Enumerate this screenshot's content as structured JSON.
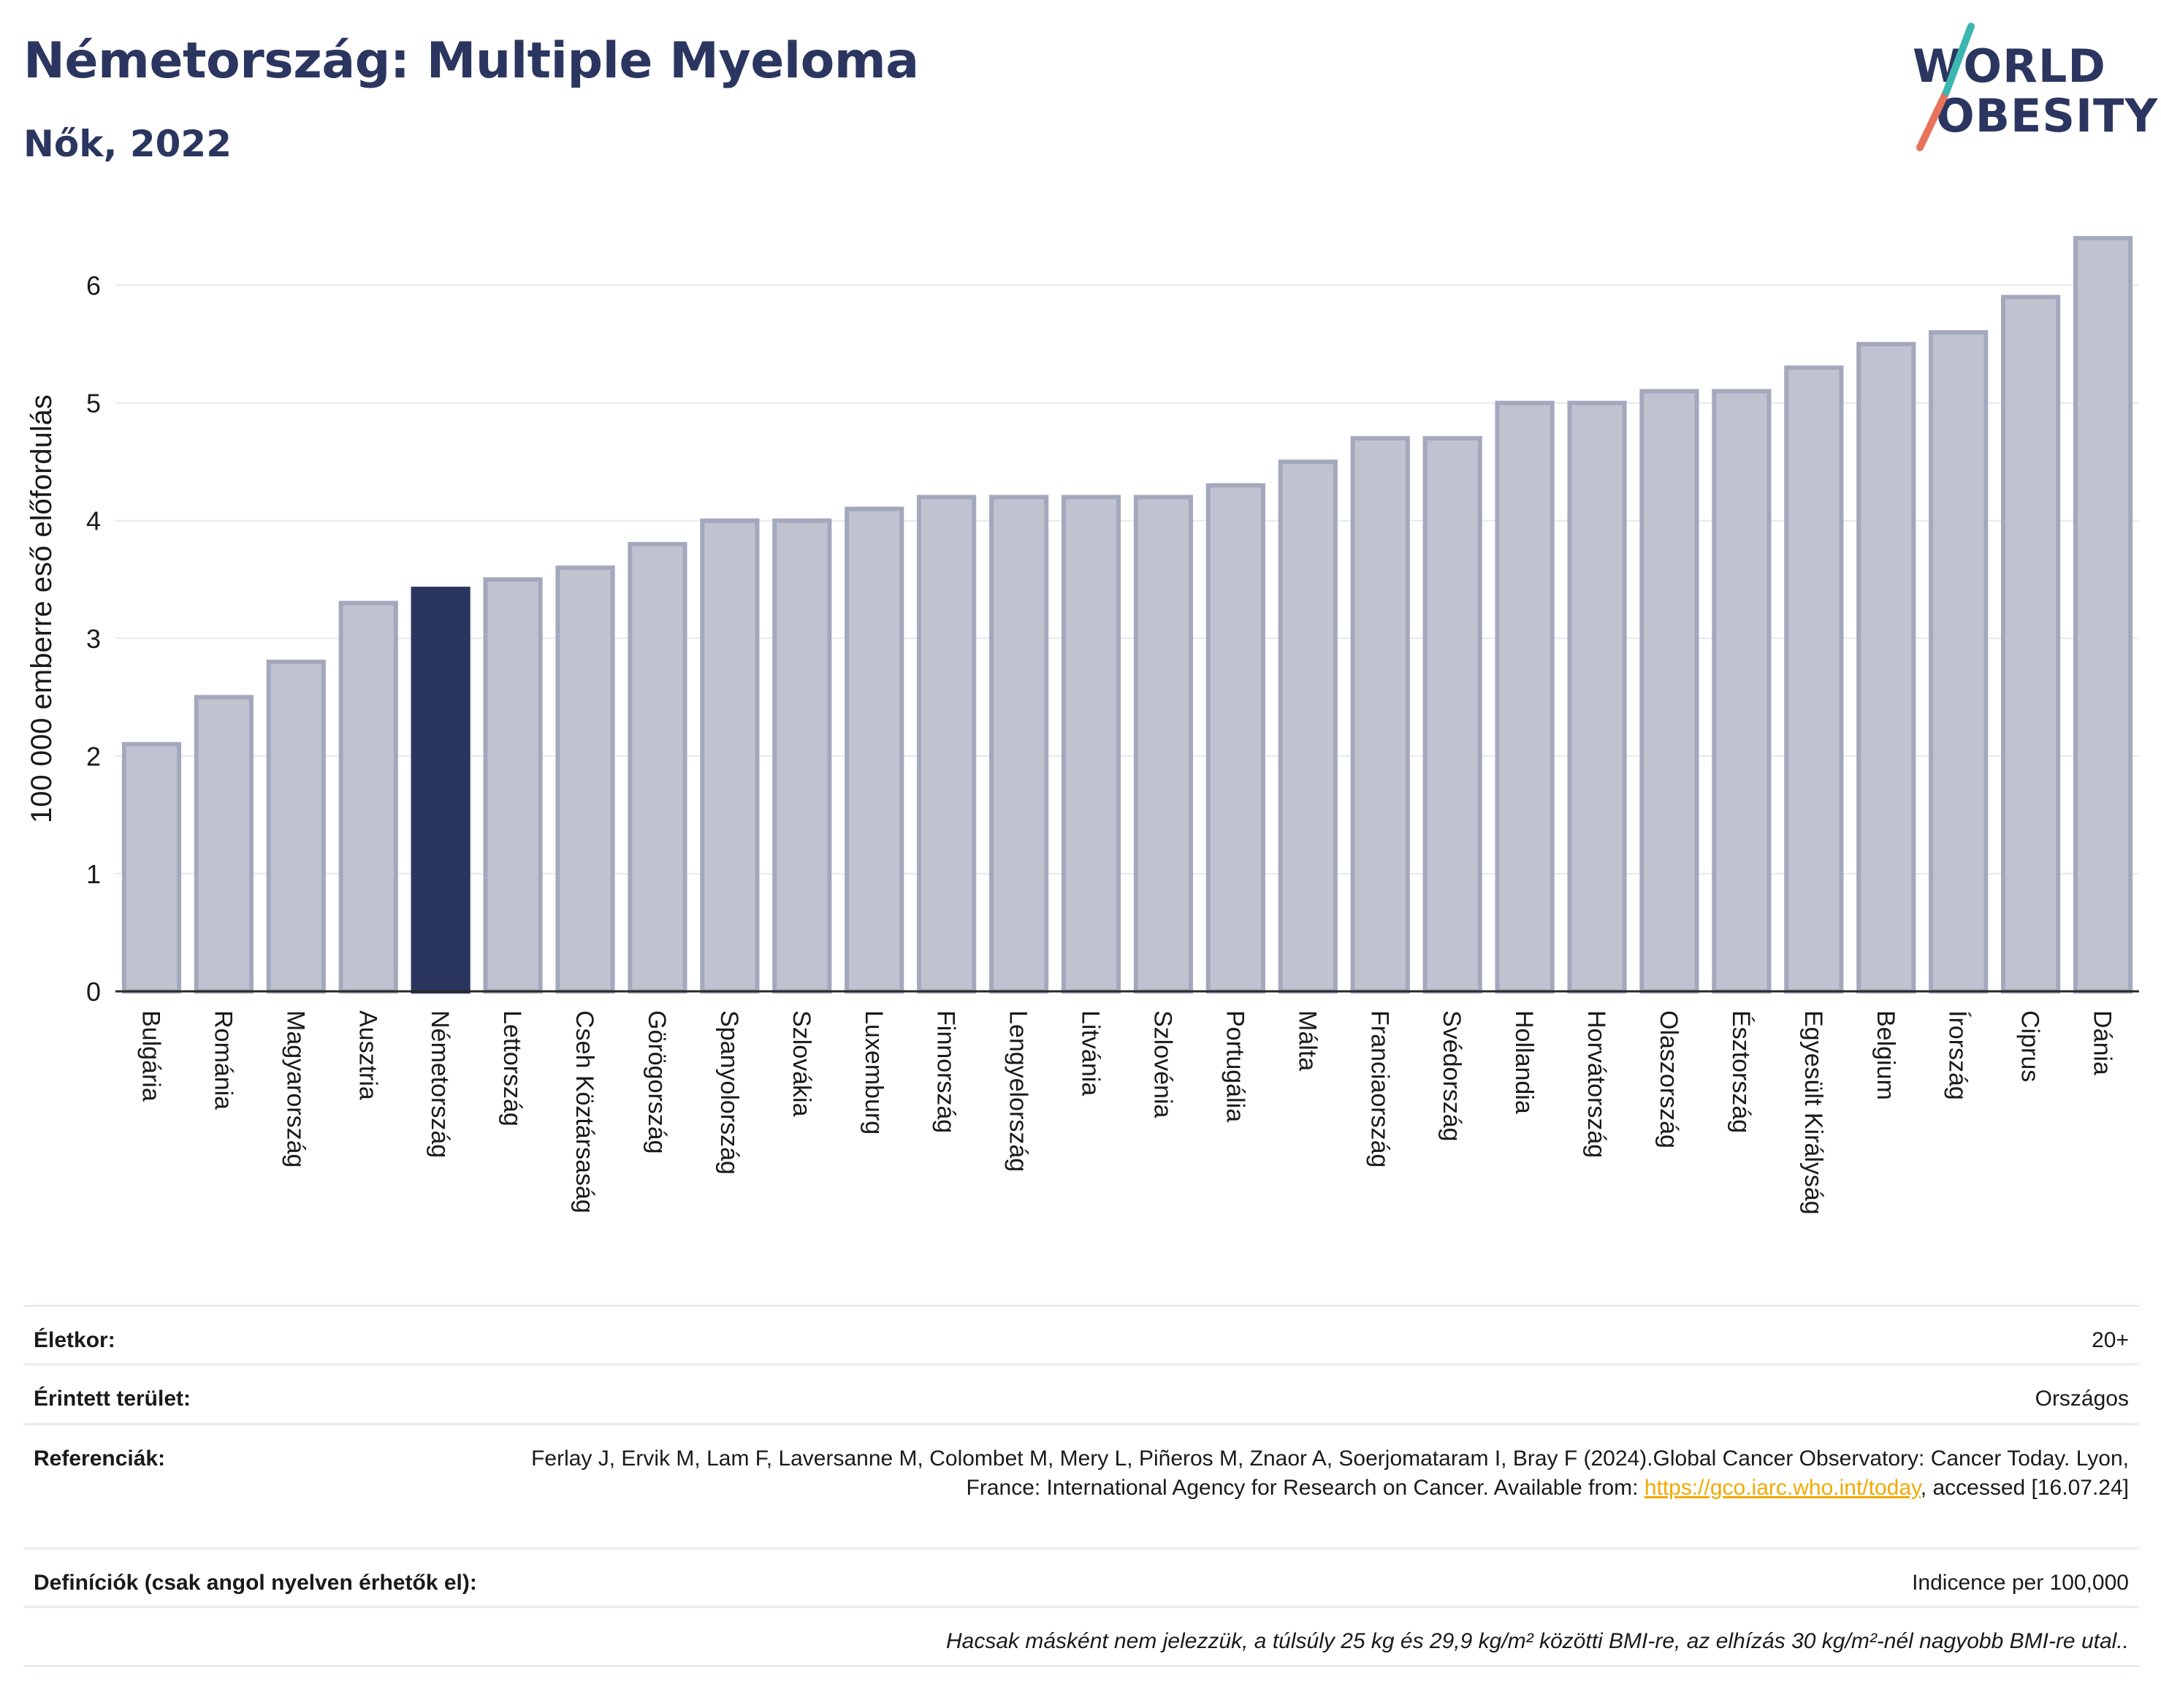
{
  "header": {
    "title": "Németország: Multiple Myeloma",
    "subtitle": "Nők, 2022"
  },
  "logo": {
    "line1": "WORLD",
    "line2": "OBESITY",
    "slash_color": "#e8725c",
    "accent_color": "#3bb7b0"
  },
  "colors": {
    "bar": "#c0c3cf",
    "bar_border": "#a3a8bd",
    "highlight": "#2b3660",
    "title": "#2b3660",
    "link": "#f2a900"
  },
  "chart_data": {
    "type": "bar",
    "title": "Németország: Multiple Myeloma",
    "subtitle": "Nők, 2022",
    "ylabel": "100 000 emberre eső előfordulás",
    "xlabel": "",
    "ylim": [
      0,
      6.5
    ],
    "yticks": [
      0,
      1,
      2,
      3,
      4,
      5,
      6
    ],
    "grid": true,
    "highlight": "Németország",
    "categories": [
      "Bulgária",
      "Románia",
      "Magyarország",
      "Ausztria",
      "Németország",
      "Lettország",
      "Cseh Köztársaság",
      "Görögország",
      "Spanyolország",
      "Szlovákia",
      "Luxemburg",
      "Finnország",
      "Lengyelország",
      "Litvánia",
      "Szlovénia",
      "Portugália",
      "Málta",
      "Franciaország",
      "Svédország",
      "Hollandia",
      "Horvátország",
      "Olaszország",
      "Észtország",
      "Egyesült Királyság",
      "Belgium",
      "Írország",
      "Ciprus",
      "Dánia"
    ],
    "values": [
      2.1,
      2.5,
      2.8,
      3.3,
      3.42,
      3.5,
      3.6,
      3.8,
      4.0,
      4.0,
      4.1,
      4.2,
      4.2,
      4.2,
      4.2,
      4.3,
      4.5,
      4.7,
      4.7,
      5.0,
      5.0,
      5.1,
      5.1,
      5.3,
      5.5,
      5.6,
      5.9,
      6.4
    ]
  },
  "info": {
    "age_label": "Életkor:",
    "age_value": "20+",
    "area_label": "Érintett terület:",
    "area_value": "Országos",
    "ref_label": "Referenciák:",
    "ref_text_1": "Ferlay J, Ervik M, Lam F, Laversanne M, Colombet M, Mery L, Piñeros M, Znaor A, Soerjomataram I, Bray F (2024).Global Cancer Observatory: Cancer Today. Lyon, France: International Agency for Research on Cancer. Available from: ",
    "ref_link": "https://gco.iarc.who.int/today",
    "ref_text_2": ", accessed [16.07.24]",
    "def_label": "Definíciók (csak angol nyelven érhetők el):",
    "def_value": "Indicence per 100,000",
    "note": "Hacsak másként nem jelezzük, a túlsúly 25 kg és 29,9 kg/m² közötti BMI-re, az elhízás 30 kg/m²-nél nagyobb BMI-re utal.."
  }
}
